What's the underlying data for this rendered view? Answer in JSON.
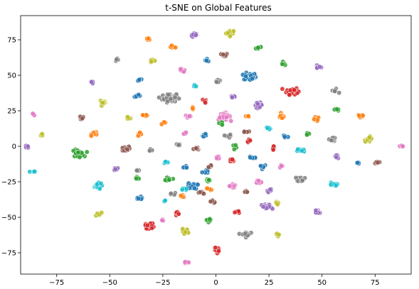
{
  "chart_data": {
    "type": "scatter",
    "title": "t-SNE on Global Features",
    "xlabel": "",
    "ylabel": "",
    "xlim": [
      -92,
      92
    ],
    "ylim": [
      -90,
      92
    ],
    "xticks": [
      -75,
      -50,
      -25,
      0,
      25,
      50,
      75
    ],
    "yticks": [
      -75,
      -50,
      -25,
      0,
      25,
      50,
      75
    ],
    "xtick_labels": [
      "−75",
      "−50",
      "−25",
      "0",
      "25",
      "50",
      "75"
    ],
    "ytick_labels": [
      "−75",
      "−50",
      "−25",
      "0",
      "25",
      "50",
      "75"
    ],
    "grid": false,
    "palette": {
      "blue": "#1f77b4",
      "orange": "#ff7f0e",
      "green": "#2ca02c",
      "red": "#d62728",
      "purple": "#9467bd",
      "brown": "#8c564b",
      "pink": "#e377c2",
      "gray": "#7f7f7f",
      "olive": "#bcbd22",
      "cyan": "#17becf"
    },
    "clusters": [
      {
        "color": "olive",
        "x": 7,
        "y": 80,
        "n": 20
      },
      {
        "color": "orange",
        "x": -32,
        "y": 76,
        "n": 4
      },
      {
        "color": "purple",
        "x": -10,
        "y": 78,
        "n": 10
      },
      {
        "color": "orange",
        "x": -20,
        "y": 70,
        "n": 6
      },
      {
        "color": "green",
        "x": 20,
        "y": 69,
        "n": 6
      },
      {
        "color": "blue",
        "x": -4,
        "y": 61,
        "n": 5
      },
      {
        "color": "brown",
        "x": 4,
        "y": 64,
        "n": 8
      },
      {
        "color": "gray",
        "x": -47,
        "y": 61,
        "n": 6
      },
      {
        "color": "olive",
        "x": -30,
        "y": 60,
        "n": 6
      },
      {
        "color": "green",
        "x": 32,
        "y": 58,
        "n": 6
      },
      {
        "color": "purple",
        "x": 48,
        "y": 56,
        "n": 8
      },
      {
        "color": "pink",
        "x": -16,
        "y": 53,
        "n": 10
      },
      {
        "color": "blue",
        "x": 16,
        "y": 49,
        "n": 40
      },
      {
        "color": "gray",
        "x": 1,
        "y": 46,
        "n": 8
      },
      {
        "color": "blue",
        "x": -36,
        "y": 47,
        "n": 8
      },
      {
        "color": "purple",
        "x": -58,
        "y": 45,
        "n": 6
      },
      {
        "color": "red",
        "x": 36,
        "y": 39,
        "n": 34
      },
      {
        "color": "gray",
        "x": 56,
        "y": 39,
        "n": 8
      },
      {
        "color": "cyan",
        "x": -10,
        "y": 42,
        "n": 3
      },
      {
        "color": "gray",
        "x": -22,
        "y": 34,
        "n": 55
      },
      {
        "color": "blue",
        "x": -37,
        "y": 35,
        "n": 5
      },
      {
        "color": "olive",
        "x": -53,
        "y": 31,
        "n": 10
      },
      {
        "color": "purple",
        "x": 8,
        "y": 35,
        "n": 6
      },
      {
        "color": "red",
        "x": -5,
        "y": 32,
        "n": 6
      },
      {
        "color": "purple",
        "x": 20,
        "y": 29,
        "n": 14
      },
      {
        "color": "green",
        "x": 57,
        "y": 26,
        "n": 6
      },
      {
        "color": "orange",
        "x": -11,
        "y": 27,
        "n": 4
      },
      {
        "color": "pink",
        "x": 4,
        "y": 21,
        "n": 36
      },
      {
        "color": "pink",
        "x": -13,
        "y": 21,
        "n": 10
      },
      {
        "color": "orange",
        "x": -33,
        "y": 22,
        "n": 6
      },
      {
        "color": "olive",
        "x": -41,
        "y": 20,
        "n": 6
      },
      {
        "color": "orange",
        "x": 31,
        "y": 21,
        "n": 10
      },
      {
        "color": "orange",
        "x": 47,
        "y": 19,
        "n": 10
      },
      {
        "color": "orange",
        "x": 68,
        "y": 21,
        "n": 10
      },
      {
        "color": "pink",
        "x": -86,
        "y": 22,
        "n": 4
      },
      {
        "color": "brown",
        "x": -63,
        "y": 20,
        "n": 6
      },
      {
        "color": "orange",
        "x": 15,
        "y": 21,
        "n": 4
      },
      {
        "color": "green",
        "x": 2,
        "y": 16,
        "n": 5
      },
      {
        "color": "orange",
        "x": -24,
        "y": 16,
        "n": 4
      },
      {
        "color": "cyan",
        "x": 25,
        "y": 13,
        "n": 6
      },
      {
        "color": "pink",
        "x": -15,
        "y": 9,
        "n": 4
      },
      {
        "color": "orange",
        "x": -36,
        "y": 8,
        "n": 8
      },
      {
        "color": "orange",
        "x": -57,
        "y": 9,
        "n": 8
      },
      {
        "color": "olive",
        "x": -82,
        "y": 8,
        "n": 4
      },
      {
        "color": "brown",
        "x": 14,
        "y": 10,
        "n": 6
      },
      {
        "color": "blue",
        "x": -5,
        "y": 8,
        "n": 8
      },
      {
        "color": "gray",
        "x": 6,
        "y": 7,
        "n": 6
      },
      {
        "color": "blue",
        "x": 33,
        "y": 7,
        "n": 5
      },
      {
        "color": "green",
        "x": 43,
        "y": 9,
        "n": 6
      },
      {
        "color": "gray",
        "x": 55,
        "y": 5,
        "n": 8
      },
      {
        "color": "olive",
        "x": 72,
        "y": 5,
        "n": 14
      },
      {
        "color": "red",
        "x": 16,
        "y": 4,
        "n": 6
      },
      {
        "color": "gray",
        "x": -18,
        "y": 1,
        "n": 5
      },
      {
        "color": "red",
        "x": 27,
        "y": -1,
        "n": 6
      },
      {
        "color": "green",
        "x": 9,
        "y": 0,
        "n": 4
      },
      {
        "color": "purple",
        "x": -89,
        "y": 0,
        "n": 4
      },
      {
        "color": "pink",
        "x": 88,
        "y": 0,
        "n": 4
      },
      {
        "color": "green",
        "x": -65,
        "y": -5,
        "n": 34
      },
      {
        "color": "brown",
        "x": -43,
        "y": -2,
        "n": 16
      },
      {
        "color": "gray",
        "x": -31,
        "y": -3,
        "n": 5
      },
      {
        "color": "brown",
        "x": -9,
        "y": -2,
        "n": 8
      },
      {
        "color": "cyan",
        "x": 40,
        "y": -3,
        "n": 10
      },
      {
        "color": "purple",
        "x": 57,
        "y": -7,
        "n": 10
      },
      {
        "color": "blue",
        "x": 17,
        "y": -8,
        "n": 12
      },
      {
        "color": "pink",
        "x": 1,
        "y": -8,
        "n": 6
      },
      {
        "color": "red",
        "x": 8,
        "y": -10,
        "n": 6
      },
      {
        "color": "cyan",
        "x": -24,
        "y": -11,
        "n": 5
      },
      {
        "color": "blue",
        "x": 67,
        "y": -12,
        "n": 4
      },
      {
        "color": "brown",
        "x": 76,
        "y": -11,
        "n": 6
      },
      {
        "color": "purple",
        "x": -47,
        "y": -16,
        "n": 5
      },
      {
        "color": "blue",
        "x": 22,
        "y": -14,
        "n": 10
      },
      {
        "color": "pink",
        "x": 31,
        "y": -14,
        "n": 5
      },
      {
        "color": "blue",
        "x": -14,
        "y": -15,
        "n": 6
      },
      {
        "color": "gray",
        "x": -37,
        "y": -17,
        "n": 4
      },
      {
        "color": "cyan",
        "x": -86,
        "y": -18,
        "n": 4
      },
      {
        "color": "blue",
        "x": -5,
        "y": -18,
        "n": 6
      },
      {
        "color": "brown",
        "x": -3,
        "y": -14,
        "n": 6
      },
      {
        "color": "green",
        "x": -37,
        "y": -22,
        "n": 5
      },
      {
        "color": "green",
        "x": -22,
        "y": -23,
        "n": 8
      },
      {
        "color": "gray",
        "x": 40,
        "y": -23,
        "n": 12
      },
      {
        "color": "pink",
        "x": 20,
        "y": -25,
        "n": 8
      },
      {
        "color": "green",
        "x": -4,
        "y": -24,
        "n": 8
      },
      {
        "color": "cyan",
        "x": -56,
        "y": -28,
        "n": 22
      },
      {
        "color": "cyan",
        "x": 55,
        "y": -27,
        "n": 14
      },
      {
        "color": "blue",
        "x": -11,
        "y": -28,
        "n": 22
      },
      {
        "color": "pink",
        "x": 8,
        "y": -28,
        "n": 10
      },
      {
        "color": "cyan",
        "x": -15,
        "y": -30,
        "n": 6
      },
      {
        "color": "brown",
        "x": -7,
        "y": -33,
        "n": 6
      },
      {
        "color": "orange",
        "x": -3,
        "y": -30,
        "n": 6
      },
      {
        "color": "purple",
        "x": 25,
        "y": -31,
        "n": 6
      },
      {
        "color": "brown",
        "x": 14,
        "y": -32,
        "n": 6
      },
      {
        "color": "gray",
        "x": -20,
        "y": -34,
        "n": 4
      },
      {
        "color": "orange",
        "x": -16,
        "y": -35,
        "n": 8
      },
      {
        "color": "blue",
        "x": -36,
        "y": -37,
        "n": 10
      },
      {
        "color": "cyan",
        "x": -24,
        "y": -38,
        "n": 4
      },
      {
        "color": "brown",
        "x": -1,
        "y": -39,
        "n": 6
      },
      {
        "color": "purple",
        "x": 24,
        "y": -43,
        "n": 24
      },
      {
        "color": "olive",
        "x": 29,
        "y": -40,
        "n": 5
      },
      {
        "color": "purple",
        "x": 48,
        "y": -46,
        "n": 12
      },
      {
        "color": "red",
        "x": 10,
        "y": -46,
        "n": 6
      },
      {
        "color": "olive",
        "x": -55,
        "y": -48,
        "n": 6
      },
      {
        "color": "red",
        "x": -19,
        "y": -47,
        "n": 6
      },
      {
        "color": "green",
        "x": -3,
        "y": -52,
        "n": 8
      },
      {
        "color": "red",
        "x": -31,
        "y": -56,
        "n": 22
      },
      {
        "color": "olive",
        "x": -15,
        "y": -60,
        "n": 14
      },
      {
        "color": "pink",
        "x": -25,
        "y": -52,
        "n": 4
      },
      {
        "color": "gray",
        "x": 14,
        "y": -62,
        "n": 16
      },
      {
        "color": "olive",
        "x": 29,
        "y": -62,
        "n": 8
      },
      {
        "color": "red",
        "x": 1,
        "y": -73,
        "n": 10
      },
      {
        "color": "pink",
        "x": -14,
        "y": -82,
        "n": 6
      }
    ]
  }
}
